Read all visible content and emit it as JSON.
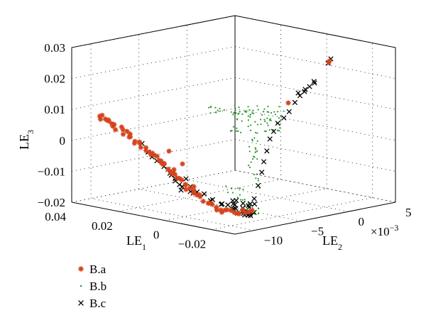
{
  "chart_data": {
    "type": "scatter3d",
    "axes": {
      "x": {
        "label": "LE",
        "label_sub": "1",
        "ticks": [
          "0.04",
          "0.02",
          "0",
          "−0.02"
        ],
        "tick_values": [
          0.04,
          0.02,
          0,
          -0.02
        ],
        "range": [
          -0.03,
          0.04
        ]
      },
      "y": {
        "label": "LE",
        "label_sub": "2",
        "ticks": [
          "−10",
          "−5",
          "0",
          "5"
        ],
        "tick_values": [
          -10,
          -5,
          0,
          5
        ],
        "multiplier": "×10",
        "multiplier_exp": "−3",
        "range": [
          -12,
          5
        ]
      },
      "z": {
        "label": "LE",
        "label_sub": "3",
        "ticks": [
          "0.03",
          "0.02",
          "0.01",
          "0",
          "−0.01",
          "−0.02"
        ],
        "tick_values": [
          0.03,
          0.02,
          0.01,
          0,
          -0.01,
          -0.02
        ],
        "range": [
          -0.02,
          0.03
        ]
      }
    },
    "grid": true,
    "legend_position": "bottom-left",
    "series": [
      {
        "name": "B.a",
        "marker": "asterisk",
        "color": "#d4441c"
      },
      {
        "name": "B.b",
        "marker": "dot",
        "color": "#2e9a2e"
      },
      {
        "name": "B.c",
        "marker": "x",
        "color": "#000000"
      }
    ]
  }
}
